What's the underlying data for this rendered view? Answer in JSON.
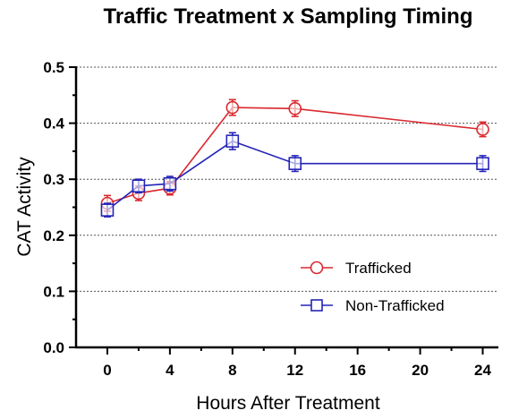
{
  "chart_data": {
    "type": "line",
    "title": "Traffic Treatment x Sampling Timing",
    "xlabel": "Hours After Treatment",
    "ylabel": "CAT Activity",
    "xlim": [
      -2,
      25
    ],
    "ylim": [
      0,
      0.5
    ],
    "x_ticks": [
      0,
      4,
      8,
      12,
      16,
      20,
      24
    ],
    "x_tick_labels": [
      "0",
      "4",
      "8",
      "12",
      "16",
      "20",
      "24"
    ],
    "y_ticks": [
      0,
      0.1,
      0.2,
      0.3,
      0.4,
      0.5
    ],
    "y_tick_labels": [
      "0.0",
      "0.1",
      "0.2",
      "0.3",
      "0.4",
      "0.5"
    ],
    "grid": "horizontal dotted",
    "legend_position": "bottom-right",
    "series": [
      {
        "name": "Trafficked",
        "color": "#d9282f",
        "marker": "circle",
        "x": [
          0,
          2,
          4,
          8,
          12,
          24
        ],
        "y": [
          0.257,
          0.275,
          0.284,
          0.428,
          0.426,
          0.389
        ],
        "error": [
          0.014,
          0.013,
          0.012,
          0.014,
          0.014,
          0.013
        ]
      },
      {
        "name": "Non-Trafficked",
        "color": "#2424b8",
        "marker": "square",
        "x": [
          0,
          2,
          4,
          8,
          12,
          24
        ],
        "y": [
          0.245,
          0.288,
          0.292,
          0.368,
          0.328,
          0.328
        ],
        "error": [
          0.012,
          0.012,
          0.013,
          0.015,
          0.014,
          0.014
        ]
      }
    ]
  }
}
